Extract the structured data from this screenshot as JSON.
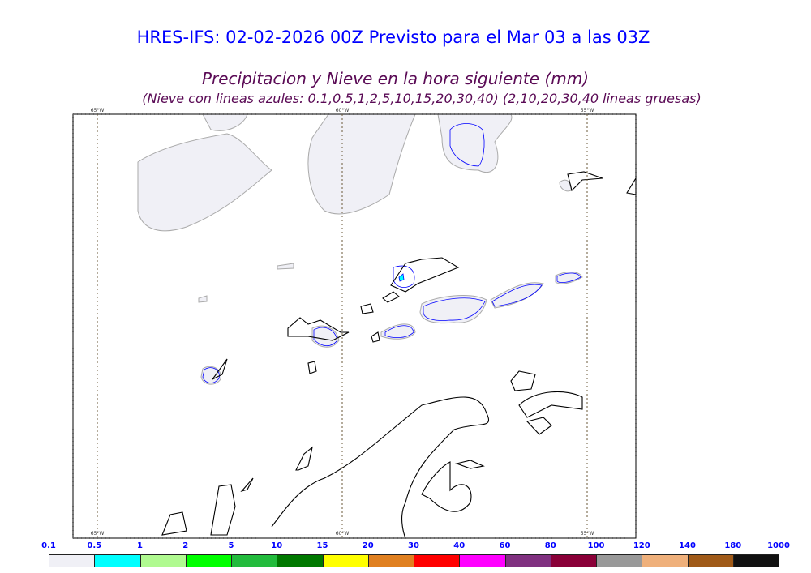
{
  "title": "HRES-IFS: 02-02-2026 00Z Previsto para el Mar 03 a las 03Z",
  "subtitle": "Precipitacion y Nieve en la hora siguiente (mm)",
  "note": "(Nieve con lineas azules: 0.1,0.5,1,2,5,10,15,20,30,40)  (2,10,20,30,40 lineas gruesas)",
  "map": {
    "longitude_labels": [
      "65°W",
      "60°W",
      "55°W"
    ],
    "colors": {
      "coastline": "#000000",
      "snow_contour": "#0000ff",
      "precip_fill": "#f0f0f6"
    }
  },
  "colorbar": {
    "labels": [
      "0.1",
      "0.5",
      "1",
      "2",
      "5",
      "10",
      "15",
      "20",
      "30",
      "40",
      "60",
      "80",
      "100",
      "120",
      "140",
      "180",
      "1000"
    ],
    "colors": [
      "#f0f0f6",
      "#00ffff",
      "#b0fa90",
      "#00ff00",
      "#22bb3c",
      "#007800",
      "#ffff00",
      "#e08020",
      "#ff0000",
      "#ff00ff",
      "#803080",
      "#8a0038",
      "#999999",
      "#efb07b",
      "#a05a18",
      "#111111"
    ]
  }
}
